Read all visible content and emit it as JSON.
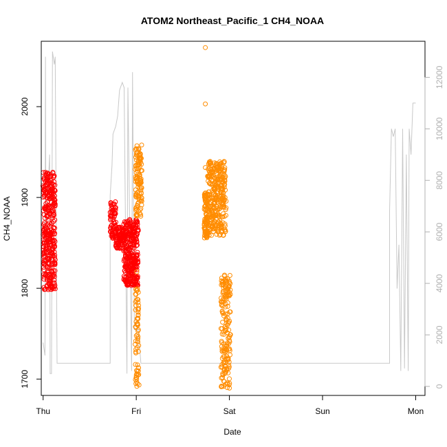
{
  "chart_data": {
    "type": "scatter",
    "title": "ATOM2 Northeast_Pacific_1 CH4_NOAA",
    "xlabel": "Date",
    "ylabel": "CH4_NOAA",
    "x_ticks": [
      "Thu",
      "Fri",
      "Sat",
      "Sun",
      "Mon"
    ],
    "xlim": [
      -0.02,
      4.1
    ],
    "ylim": [
      1682,
      2072
    ],
    "y_ticks": [
      1700,
      1800,
      1900,
      2000
    ],
    "y2lim": [
      -350,
      13400
    ],
    "y2_ticks": [
      0,
      2000,
      4000,
      6000,
      8000,
      10000,
      12000
    ],
    "grid": false,
    "colors": {
      "flight1": "#ff0000",
      "flight2": "#ff8c00",
      "altitude": "#c8c8c8",
      "right_axis": "#b0b0b0"
    },
    "series": [
      {
        "color_key": "flight1",
        "segments": [
          {
            "x0": 0.0,
            "x1": 0.13,
            "ymin": 1798,
            "ymax": 1928,
            "n": 360,
            "mode": "dense"
          },
          {
            "x0": 0.72,
            "x1": 0.78,
            "ymin": 1855,
            "ymax": 1897,
            "n": 70,
            "mode": "dense"
          },
          {
            "x0": 0.78,
            "x1": 0.87,
            "ymin": 1843,
            "ymax": 1868,
            "n": 90,
            "mode": "dense"
          },
          {
            "x0": 0.87,
            "x1": 1.02,
            "ymin": 1803,
            "ymax": 1876,
            "n": 320,
            "mode": "dense"
          }
        ]
      },
      {
        "color_key": "flight2",
        "segments": [
          {
            "x0": 0.99,
            "x1": 1.06,
            "ymin": 1878,
            "ymax": 1958,
            "n": 120,
            "mode": "dense"
          },
          {
            "x0": 0.99,
            "x1": 1.03,
            "ymin": 1692,
            "ymax": 1800,
            "n": 70,
            "mode": "sparse"
          },
          {
            "x0": 1.73,
            "x1": 1.77,
            "ymin": 1855,
            "ymax": 1905,
            "n": 90,
            "mode": "dense"
          },
          {
            "x0": 1.77,
            "x1": 1.96,
            "ymin": 1858,
            "ymax": 1940,
            "n": 320,
            "mode": "dense"
          },
          {
            "x0": 1.91,
            "x1": 2.01,
            "ymin": 1690,
            "ymax": 1815,
            "n": 180,
            "mode": "dense"
          }
        ],
        "outliers": [
          [
            1.742,
            2065
          ],
          [
            1.742,
            2003
          ],
          [
            1.742,
            1933
          ],
          [
            1.004,
            1697
          ],
          [
            1.006,
            1818
          ],
          [
            2.0,
            1690
          ]
        ]
      }
    ],
    "altitude_series": {
      "color_key": "altitude",
      "x": [
        0.0,
        0.02,
        0.025,
        0.03,
        0.07,
        0.075,
        0.09,
        0.1,
        0.12,
        0.13,
        0.15,
        0.72,
        0.72,
        0.74,
        0.75,
        0.77,
        0.78,
        0.8,
        0.82,
        0.85,
        0.87,
        0.9,
        0.91,
        0.95,
        0.96,
        0.98,
        1.0,
        1.02,
        1.05,
        3.72,
        3.72,
        3.74,
        3.76,
        3.78,
        3.8,
        3.82,
        3.84,
        3.86,
        3.88,
        3.9,
        3.92,
        3.93,
        3.95,
        3.97,
        4.0
      ],
      "y": [
        1700,
        1200,
        12800,
        6000,
        9000,
        500,
        500,
        13000,
        12500,
        12800,
        900,
        900,
        7400,
        8600,
        9800,
        10000,
        10100,
        10500,
        11500,
        11800,
        11600,
        500,
        11600,
        600,
        12200,
        2200,
        2200,
        2200,
        900,
        900,
        6800,
        10000,
        9700,
        10000,
        3800,
        5500,
        600,
        10000,
        700,
        9000,
        600,
        10000,
        9000,
        11000,
        11000
      ],
      "units": "right axis"
    }
  }
}
